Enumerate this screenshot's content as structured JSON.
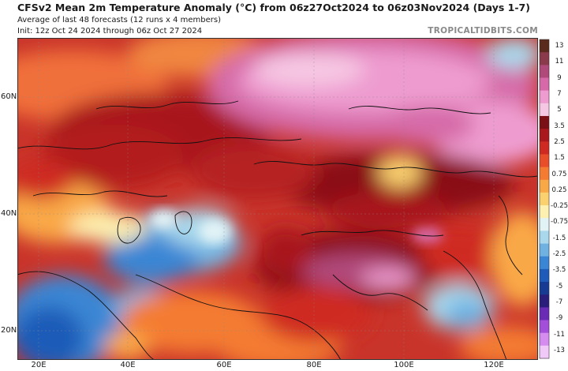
{
  "header": {
    "title": "CFSv2 Mean 2m Temperature Anomaly (°C) from 06z27Oct2024 to 06z03Nov2024 (Days 1-7)",
    "subtitle_1": "Average of last 48 forecasts (12 runs x 4 members)",
    "subtitle_2": "Init: 12z Oct 24 2024 through 06z Oct 27 2024",
    "brand": "TROPICALTIDBITS.COM"
  },
  "map": {
    "x_ticks": [
      "20E",
      "40E",
      "60E",
      "80E",
      "100E",
      "120E"
    ],
    "y_ticks": [
      "60N",
      "40N",
      "20N"
    ]
  },
  "legend": {
    "labels": [
      "13",
      "11",
      "9",
      "7",
      "5",
      "3.5",
      "2.5",
      "1.5",
      "0.75",
      "0.25",
      "-0.25",
      "-0.75",
      "-1.5",
      "-2.5",
      "-3.5",
      "-5",
      "-7",
      "-9",
      "-11",
      "-13"
    ],
    "colors": [
      "#5a2b1c",
      "#8a3a4a",
      "#b04a7a",
      "#d66aa8",
      "#ee9cd0",
      "#f6c7e3",
      "#7a1016",
      "#a8181c",
      "#cf2a22",
      "#e84e2a",
      "#f47b32",
      "#f9a847",
      "#fbd170",
      "#fdf0b0",
      "#e2f3f6",
      "#a9d8ec",
      "#6fb2e2",
      "#3a86d4",
      "#1f5bb8",
      "#173a93",
      "#2b1e7a",
      "#6a2bb5",
      "#a44fd9",
      "#d58cef",
      "#f1c9f8"
    ]
  }
}
